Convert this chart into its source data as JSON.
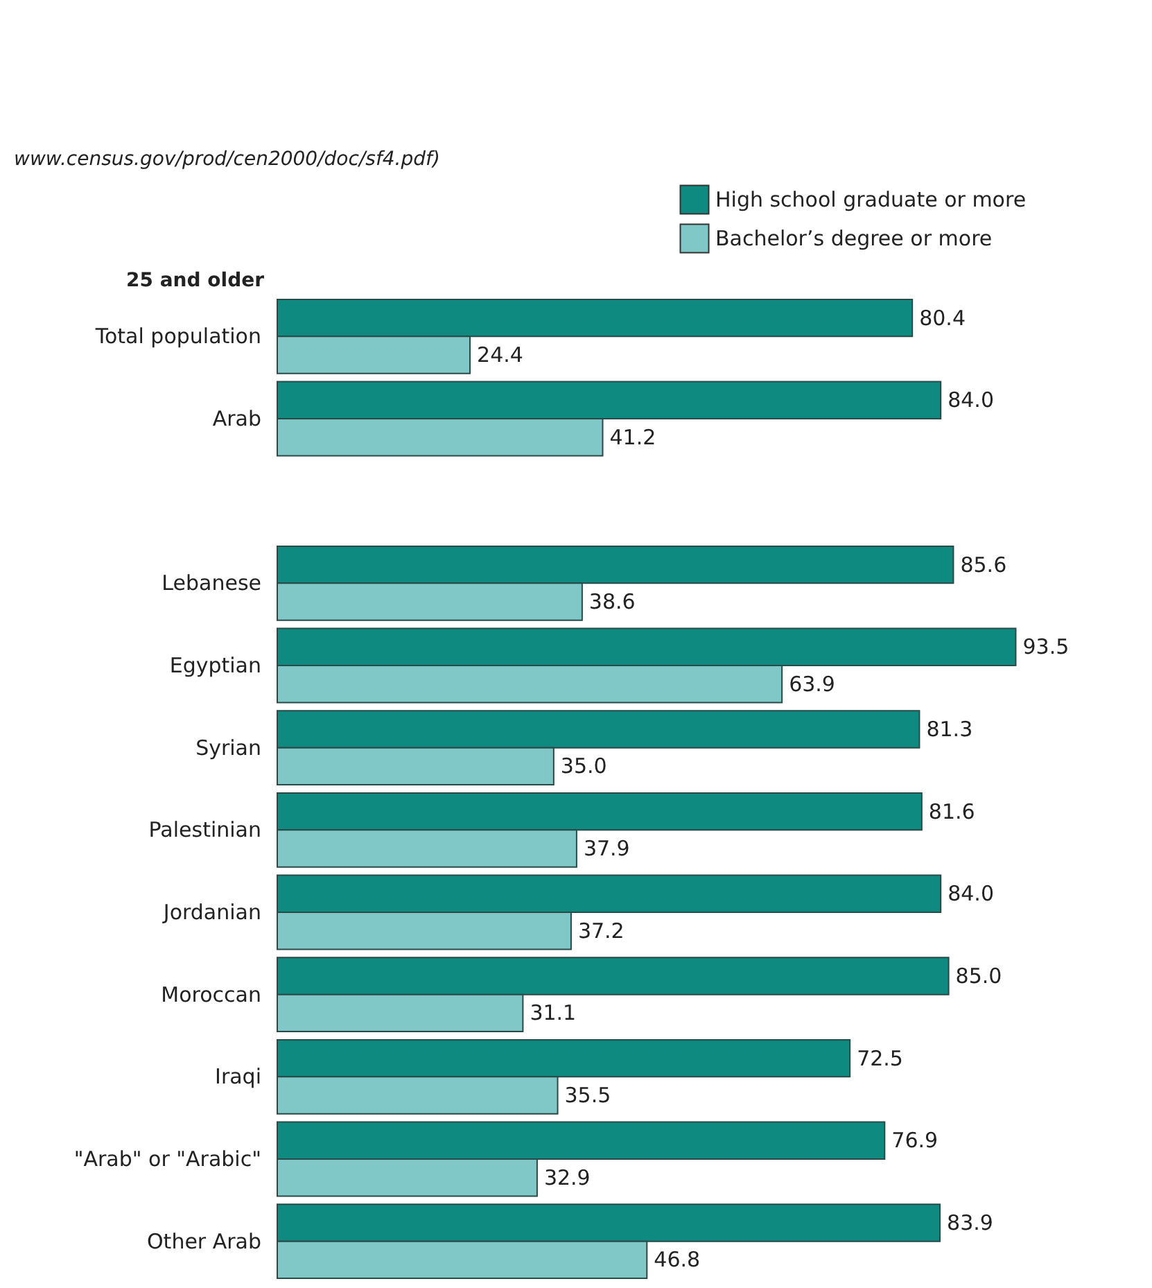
{
  "chart_data": {
    "type": "bar",
    "orientation": "horizontal",
    "ylabel": "25 and older",
    "annotations": [
      "www.census.gov/prod/cen2000/doc/sf4.pdf)"
    ],
    "categories": [
      "Total population",
      "Arab",
      null,
      "Lebanese",
      "Egyptian",
      "Syrian",
      "Palestinian",
      "Jordanian",
      "Moroccan",
      "Iraqi",
      "\"Arab\" or \"Arabic\"",
      "Other Arab"
    ],
    "series": [
      {
        "name": "High school graduate or more",
        "color": "#0e8a80",
        "values": [
          80.4,
          84.0,
          null,
          85.6,
          93.5,
          81.3,
          81.6,
          84.0,
          85.0,
          72.5,
          76.9,
          83.9
        ],
        "value_labels": [
          "80.4",
          "84.0",
          null,
          "85.6",
          "93.5",
          "81.3",
          "81.6",
          "84.0",
          "85.0",
          "72.5",
          "76.9",
          "83.9"
        ]
      },
      {
        "name": "Bachelor’s degree or more",
        "color": "#80c8c8",
        "values": [
          24.4,
          41.2,
          null,
          38.6,
          63.9,
          35.0,
          37.9,
          37.2,
          31.1,
          35.5,
          32.9,
          46.8
        ],
        "value_labels": [
          "24.4",
          "41.2",
          null,
          "38.6",
          "63.9",
          "35.0",
          "37.9",
          "37.2",
          "31.1",
          "35.5",
          "32.9",
          "46.8"
        ]
      }
    ],
    "legend": "top right"
  }
}
